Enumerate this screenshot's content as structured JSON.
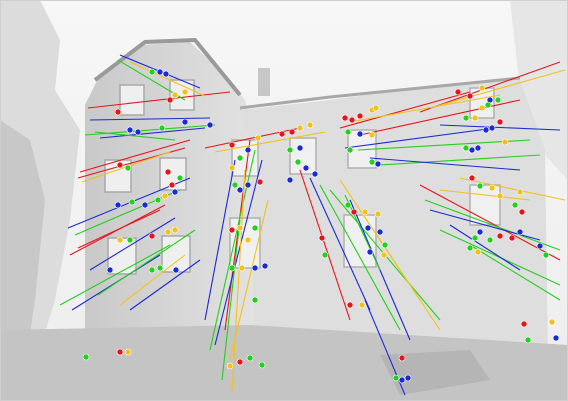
{
  "image": {
    "subject": "house-facade-feature-match-overlay",
    "style": "grayscale-photo-with-colored-keypoints",
    "colors": {
      "red": "#e8141a",
      "green": "#22d11a",
      "blue": "#1a2ad6",
      "yellow": "#f2c21a",
      "sky": "#f3f3f3",
      "wall": "#d9d9d9",
      "shadow": "#bdbdbd",
      "window": "#ececec",
      "roof": "#9a9a9a"
    }
  }
}
